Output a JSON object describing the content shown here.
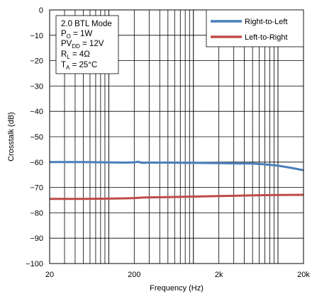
{
  "chart_data": {
    "type": "line",
    "title": "",
    "xlabel": "Frequency (Hz)",
    "ylabel": "Crosstalk (dB)",
    "x_scale": "log",
    "xlim": [
      20,
      20000
    ],
    "ylim": [
      -100,
      0
    ],
    "x_ticks": [
      20,
      200,
      2000,
      20000
    ],
    "x_tick_labels": [
      "20",
      "200",
      "2k",
      "20k"
    ],
    "y_ticks": [
      0,
      -10,
      -20,
      -30,
      -40,
      -50,
      -60,
      -70,
      -80,
      -90,
      -100
    ],
    "y_tick_labels": [
      "0",
      "−10",
      "−20",
      "−30",
      "−40",
      "−50",
      "−60",
      "−70",
      "−80",
      "−90",
      "−100"
    ],
    "grid": true,
    "legend_position": "top-right",
    "conditions": {
      "mode": "2.0 BTL Mode",
      "po_main": "P",
      "po_sub": "O",
      "po_value": " = 1W",
      "pv_main": "PV",
      "pv_sub": "DD",
      "pv_value": " = 12V",
      "rl_main": "R",
      "rl_sub": "L",
      "rl_value": " = 4Ω",
      "ta_main": "T",
      "ta_sub": "A",
      "ta_value": " = 25°C"
    },
    "series": [
      {
        "name": "Right-to-Left",
        "color": "#4a7ebb",
        "x": [
          20,
          50,
          100,
          150,
          200,
          220,
          250,
          300,
          500,
          1000,
          2000,
          3000,
          5000,
          7000,
          10000,
          15000,
          20000
        ],
        "y": [
          -60,
          -60,
          -60.1,
          -60.2,
          -60.1,
          -59.9,
          -60.3,
          -60.2,
          -60.2,
          -60.3,
          -60.4,
          -60.5,
          -60.6,
          -60.9,
          -61.4,
          -62.4,
          -63.2
        ]
      },
      {
        "name": "Left-to-Right",
        "color": "#be4b48",
        "x": [
          20,
          50,
          100,
          150,
          200,
          250,
          300,
          500,
          1000,
          2000,
          3000,
          5000,
          10000,
          20000
        ],
        "y": [
          -74.5,
          -74.5,
          -74.4,
          -74.3,
          -74.2,
          -74.0,
          -73.9,
          -73.8,
          -73.6,
          -73.4,
          -73.3,
          -73.1,
          -73.0,
          -72.9
        ]
      }
    ]
  }
}
